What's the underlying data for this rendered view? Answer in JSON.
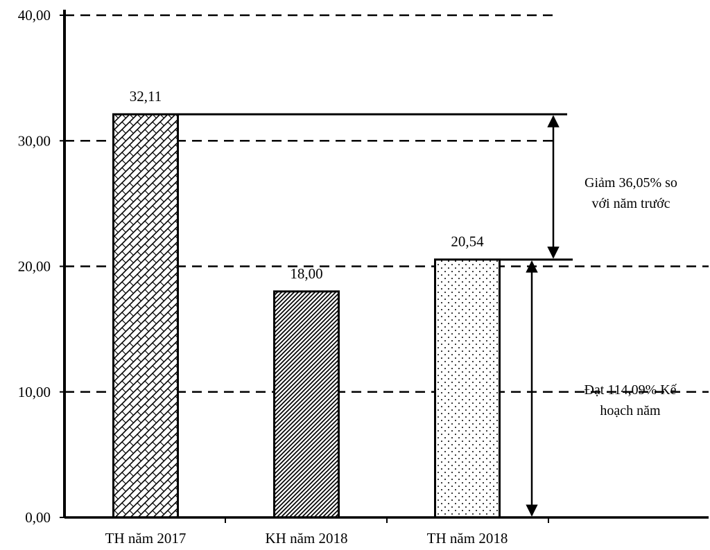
{
  "chart_data": {
    "type": "bar",
    "categories": [
      "TH năm 2017",
      "KH năm 2018",
      "TH năm 2018"
    ],
    "values": [
      32.11,
      18.0,
      20.54
    ],
    "data_labels": [
      "32,11",
      "18,00",
      "20,54"
    ],
    "ylim": [
      0,
      40
    ],
    "yticks": [
      0,
      10,
      20,
      30,
      40
    ],
    "ytick_labels": [
      "0,00",
      "10,00",
      "20,00",
      "30,00",
      "40,00"
    ],
    "grid": "dashed horizontal",
    "title": "",
    "xlabel": "",
    "ylabel": "",
    "annotations": [
      {
        "lines": [
          "Giảm 36,05% so",
          "với năm trước"
        ],
        "from_value": 32.11,
        "to_value": 20.54
      },
      {
        "lines": [
          "Đạt 114,09% Kế",
          "hoạch năm"
        ],
        "from_value": 20.54,
        "to_value": 0
      }
    ]
  }
}
